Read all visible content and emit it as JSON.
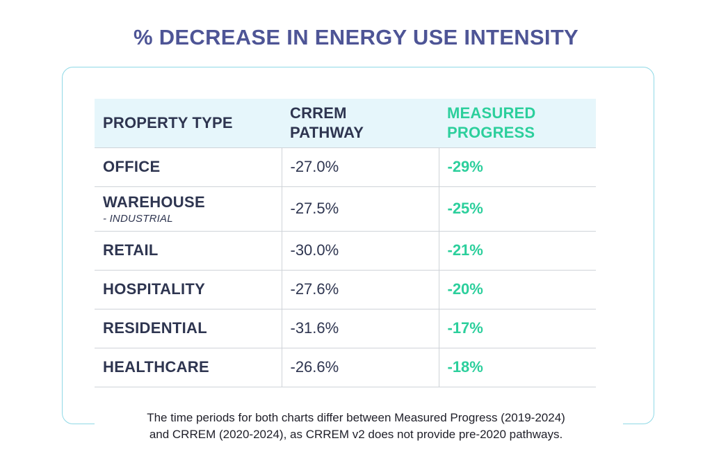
{
  "title": "% DECREASE IN ENERGY USE INTENSITY",
  "chart_data": {
    "type": "table",
    "title": "% DECREASE IN ENERGY USE INTENSITY",
    "columns": [
      "PROPERTY TYPE",
      "CRREM PATHWAY",
      "MEASURED PROGRESS"
    ],
    "column_lines": [
      [
        "PROPERTY TYPE"
      ],
      [
        "CRREM",
        "PATHWAY"
      ],
      [
        "MEASURED",
        "PROGRESS"
      ]
    ],
    "rows": [
      {
        "type": "OFFICE",
        "subtype": "",
        "crrem": "-27.0%",
        "measured": "-29%"
      },
      {
        "type": "WAREHOUSE",
        "subtype": "- INDUSTRIAL",
        "crrem": "-27.5%",
        "measured": "-25%"
      },
      {
        "type": "RETAIL",
        "subtype": "",
        "crrem": "-30.0%",
        "measured": "-21%"
      },
      {
        "type": "HOSPITALITY",
        "subtype": "",
        "crrem": "-27.6%",
        "measured": "-20%"
      },
      {
        "type": "RESIDENTIAL",
        "subtype": "",
        "crrem": "-31.6%",
        "measured": "-17%"
      },
      {
        "type": "HEALTHCARE",
        "subtype": "",
        "crrem": "-26.6%",
        "measured": "-18%"
      }
    ],
    "values_crrem": [
      -27.0,
      -27.5,
      -30.0,
      -27.6,
      -31.6,
      -26.6
    ],
    "values_measured": [
      -29,
      -25,
      -21,
      -20,
      -17,
      -18
    ]
  },
  "colors": {
    "title": "#4e5596",
    "measured_accent": "#2ccf9c",
    "header_bg": "#e6f6fb",
    "frame": "#8fd9e6"
  },
  "footnote": {
    "line1": "The time periods for both charts differ between Measured Progress (2019-2024)",
    "line2": "and CRREM (2020-2024), as CRREM v2 does not provide pre-2020 pathways."
  }
}
